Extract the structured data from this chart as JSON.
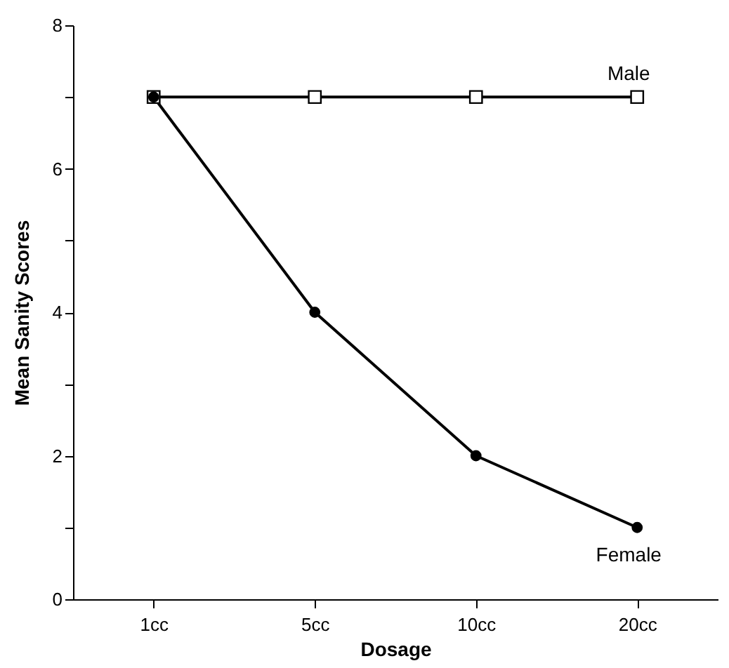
{
  "chart_data": {
    "type": "line",
    "xlabel": "Dosage",
    "ylabel": "Mean Sanity Scores",
    "categories": [
      "1cc",
      "5cc",
      "10cc",
      "20cc"
    ],
    "series": [
      {
        "name": "Male",
        "color": "#000000",
        "marker": "square",
        "values": [
          7,
          7,
          7,
          7
        ]
      },
      {
        "name": "Female",
        "color": "#000000",
        "marker": "circle",
        "values": [
          7,
          4,
          2,
          1
        ]
      }
    ],
    "ylim": [
      0,
      8
    ],
    "yticks": [
      0,
      {
        "value": 1,
        "label": null
      },
      2,
      {
        "value": 3,
        "label": null
      },
      4,
      {
        "value": 5,
        "label": null
      },
      6,
      {
        "value": 7,
        "label": null
      },
      8
    ],
    "grid": false,
    "legend": false,
    "line_style": "solid"
  }
}
